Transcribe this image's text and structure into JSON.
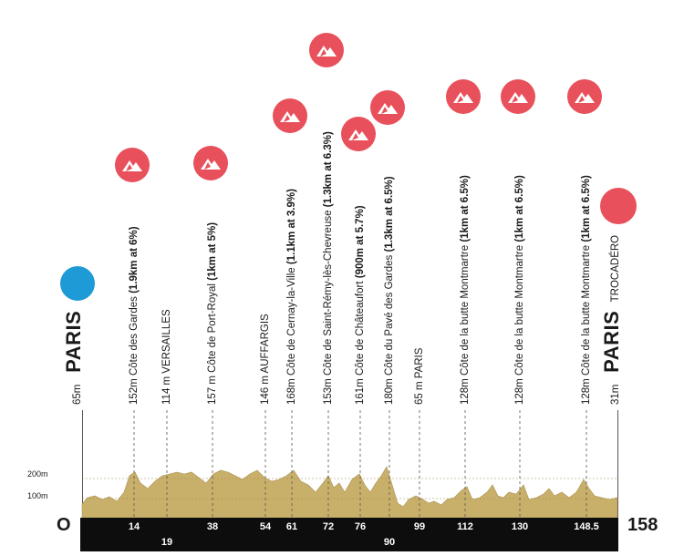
{
  "axis": {
    "label_200": "200m",
    "label_100": "100m",
    "start_km": "O",
    "end_km": "158"
  },
  "start": {
    "elevation": "65m",
    "city": "PARIS",
    "marker_color": "#1e9ad6"
  },
  "finish": {
    "elevation": "31m",
    "city": "PARIS",
    "place": "TROCADÉRO",
    "marker_color": "#e8505b"
  },
  "climb_icon_color": "#e8505b",
  "profile_fill": "#c9b06a",
  "waypoints": [
    {
      "km": "14",
      "pre": "152m Côte des Gardes ",
      "bold": "(1.9km at 6%)",
      "climb": true
    },
    {
      "km": "19",
      "pre": "114 m VERSAILLES",
      "bold": "",
      "climb": false
    },
    {
      "km": "38",
      "pre": "157 m Côte de Port-Royal ",
      "bold": "(1km at 5%)",
      "climb": true
    },
    {
      "km": "54",
      "pre": "146 m AUFFARGIS",
      "bold": "",
      "climb": false
    },
    {
      "km": "61",
      "pre": "168m Côte de Cernay-la-Ville ",
      "bold": "(1.1km at 3.9%)",
      "climb": true
    },
    {
      "km": "72",
      "pre": "153m Côte de Saint-Rémy-lès-Chevreuse ",
      "bold": "(1.3km at 6.3%)",
      "climb": true
    },
    {
      "km": "76",
      "pre": "161m Côte de Châteaufort ",
      "bold": "(900m at 5.7%)",
      "climb": true
    },
    {
      "km": "90",
      "pre": "180m Côte du Pavé des Gardes ",
      "bold": "(1.3km at 6.5%)",
      "climb": true
    },
    {
      "km": "99",
      "pre": "65 m PARIS",
      "bold": "",
      "climb": false
    },
    {
      "km": "112",
      "pre": "128m Côte de la butte Montmartre ",
      "bold": "(1km at 6.5%)",
      "climb": true
    },
    {
      "km": "130",
      "pre": "128m Côte de la butte Montmartre ",
      "bold": "(1km at 6.5%)",
      "climb": true
    },
    {
      "km": "148.5",
      "pre": "128m Côte de la butte Montmartre ",
      "bold": "(1km at 6.5%)",
      "climb": true
    }
  ]
}
